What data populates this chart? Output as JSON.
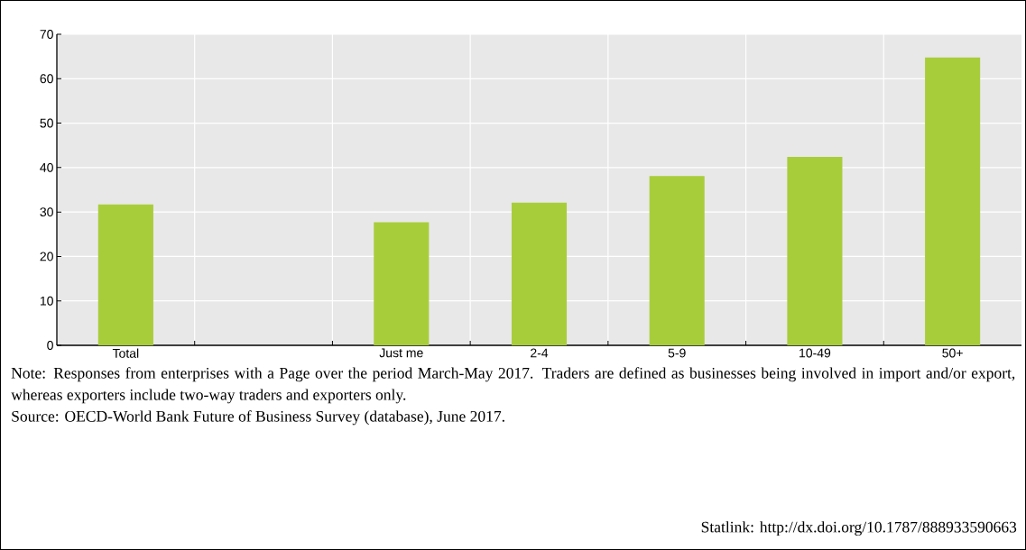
{
  "chart_data": {
    "type": "bar",
    "categories": [
      "Total",
      null,
      "Just me",
      "2-4",
      "5-9",
      "10-49",
      "50+"
    ],
    "values": [
      31.7,
      null,
      27.7,
      32.1,
      38.1,
      42.4,
      64.8
    ],
    "color": "#a8cd3a",
    "ylim": [
      0,
      70
    ],
    "yticks": [
      0,
      10,
      20,
      30,
      40,
      50,
      60,
      70
    ],
    "grid": true,
    "annotations": [
      "Note: Responses from enterprises with a Page over the period March-May 2017. Traders are defined as businesses being involved in import and/or export, whereas exporters include two-way traders and exporters only.",
      "Source: OECD-World Bank Future of Business Survey (database), June 2017.",
      "Statlink: http://dx.doi.org/10.1787/888933590663"
    ]
  }
}
